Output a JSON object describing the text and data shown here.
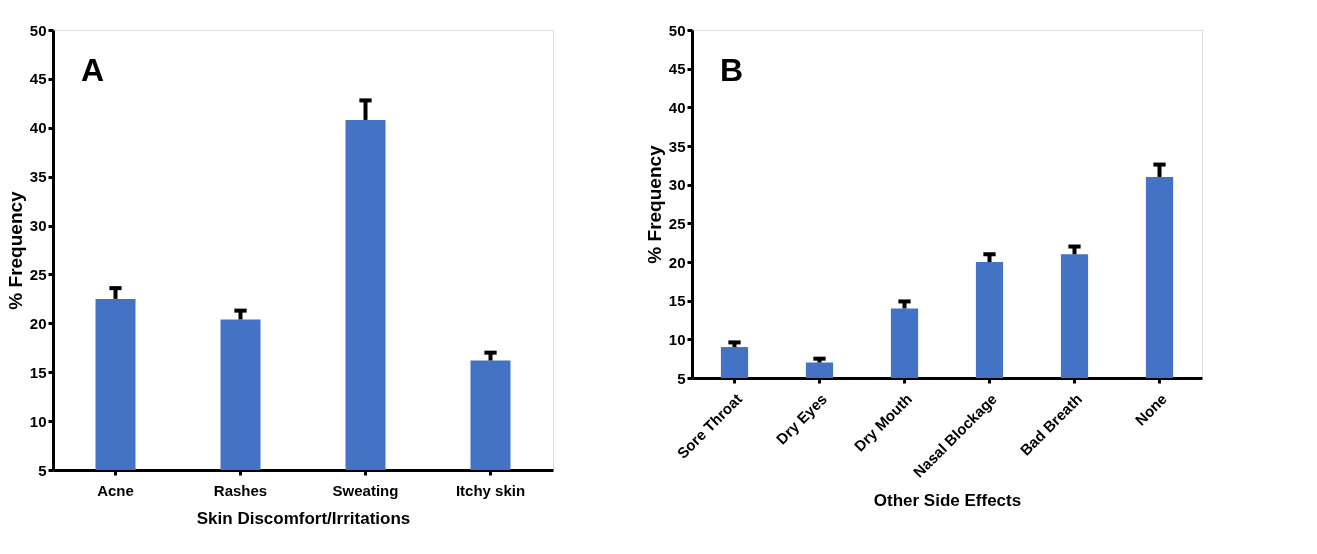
{
  "chart_data": [
    {
      "type": "bar",
      "xlabel": "Skin Discomfort/Irritations",
      "ylabel": "% Frequency",
      "annotations": [
        "A"
      ],
      "categories": [
        "Acne",
        "Rashes",
        "Sweating",
        "Itchy skin"
      ],
      "values": [
        22.5,
        20.4,
        40.8,
        16.2
      ],
      "color": "#4472c4",
      "errors": [
        [
          22.5,
          23.6
        ],
        [
          20.4,
          21.3
        ],
        [
          40.8,
          42.8
        ],
        [
          16.2,
          17.0
        ]
      ],
      "ylim": [
        5,
        50
      ],
      "yticks": [
        5,
        10,
        15,
        20,
        25,
        30,
        35,
        40,
        45,
        50
      ],
      "grid": false
    },
    {
      "type": "bar",
      "xlabel": "Other Side Effects",
      "ylabel": "% Frequency",
      "annotations": [
        "B"
      ],
      "categories": [
        "Sore Throat",
        "Dry Eyes",
        "Dry Mouth",
        "Nasal Blockage",
        "Bad Breath",
        "None"
      ],
      "values": [
        9,
        7,
        14,
        20,
        21,
        31
      ],
      "color": "#4472c4",
      "errors": [
        [
          9,
          9.6
        ],
        [
          7,
          7.5
        ],
        [
          14,
          14.9
        ],
        [
          20,
          21.0
        ],
        [
          21,
          22.0
        ],
        [
          31,
          32.6
        ]
      ],
      "ylim": [
        5,
        50
      ],
      "yticks": [
        5,
        10,
        15,
        20,
        25,
        30,
        35,
        40,
        45,
        50
      ],
      "grid": false
    }
  ]
}
